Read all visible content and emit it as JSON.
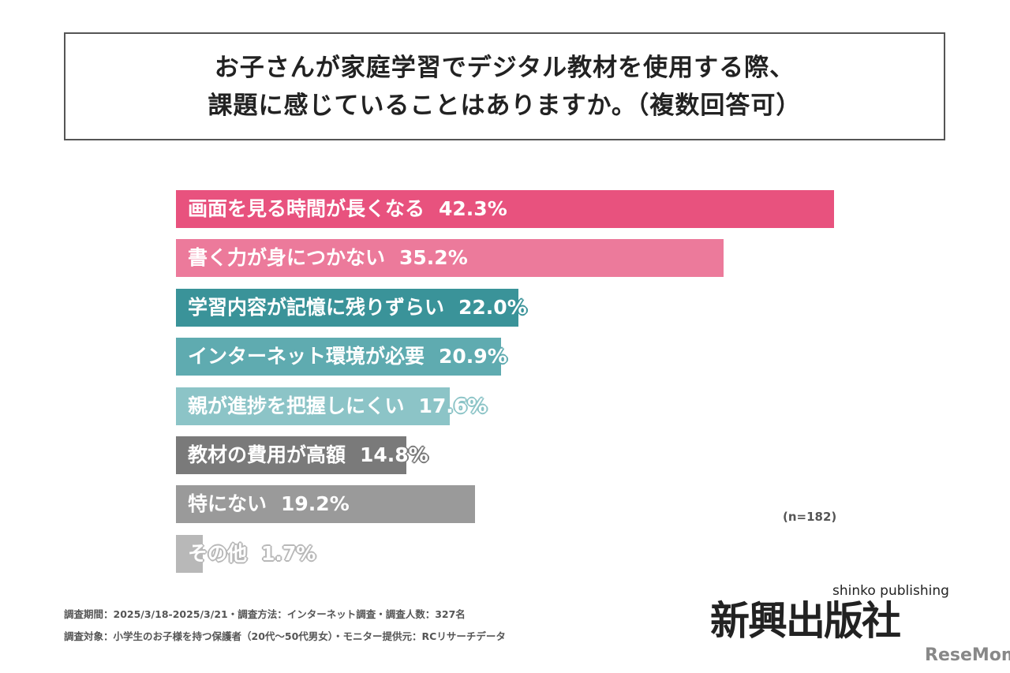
{
  "title_lines": [
    "お子さんが家庭学習でデジタル教材を使用する際、",
    "課題に感じていることはありますか。（複数回答可）"
  ],
  "chart_data": {
    "type": "bar",
    "orientation": "horizontal",
    "categories": [
      "画面を見る時間が長くなる",
      "書く力が身につかない",
      "学習内容が記憶に残りずらい",
      "インターネット環境が必要",
      "親が進捗を把握しにくい",
      "教材の費用が高額",
      "特にない",
      "その他"
    ],
    "values": [
      42.3,
      35.2,
      22.0,
      20.9,
      17.6,
      14.8,
      19.2,
      1.7
    ],
    "value_labels": [
      "42.3%",
      "35.2%",
      "22.0%",
      "20.9%",
      "17.6%",
      "14.8%",
      "19.2%",
      "1.7%"
    ],
    "colors": [
      "#e8527e",
      "#ec7a9b",
      "#3a9399",
      "#5fabb0",
      "#8cc4c7",
      "#7a7a7a",
      "#9a9a9a",
      "#b8b8b8"
    ],
    "note": "(n=182)",
    "grid": false
  },
  "footer": [
    "調査期間：2025/3/18-2025/3/21・調査方法：インターネット調査・調査人数：327名",
    "調査対象：小学生のお子様を持つ保護者（20代～50代男女）・モニター提供元：RCリサーチデータ"
  ],
  "logo": {
    "kanji": "新興出版社",
    "english": "shinko publishing"
  },
  "watermark": "ReseMom"
}
